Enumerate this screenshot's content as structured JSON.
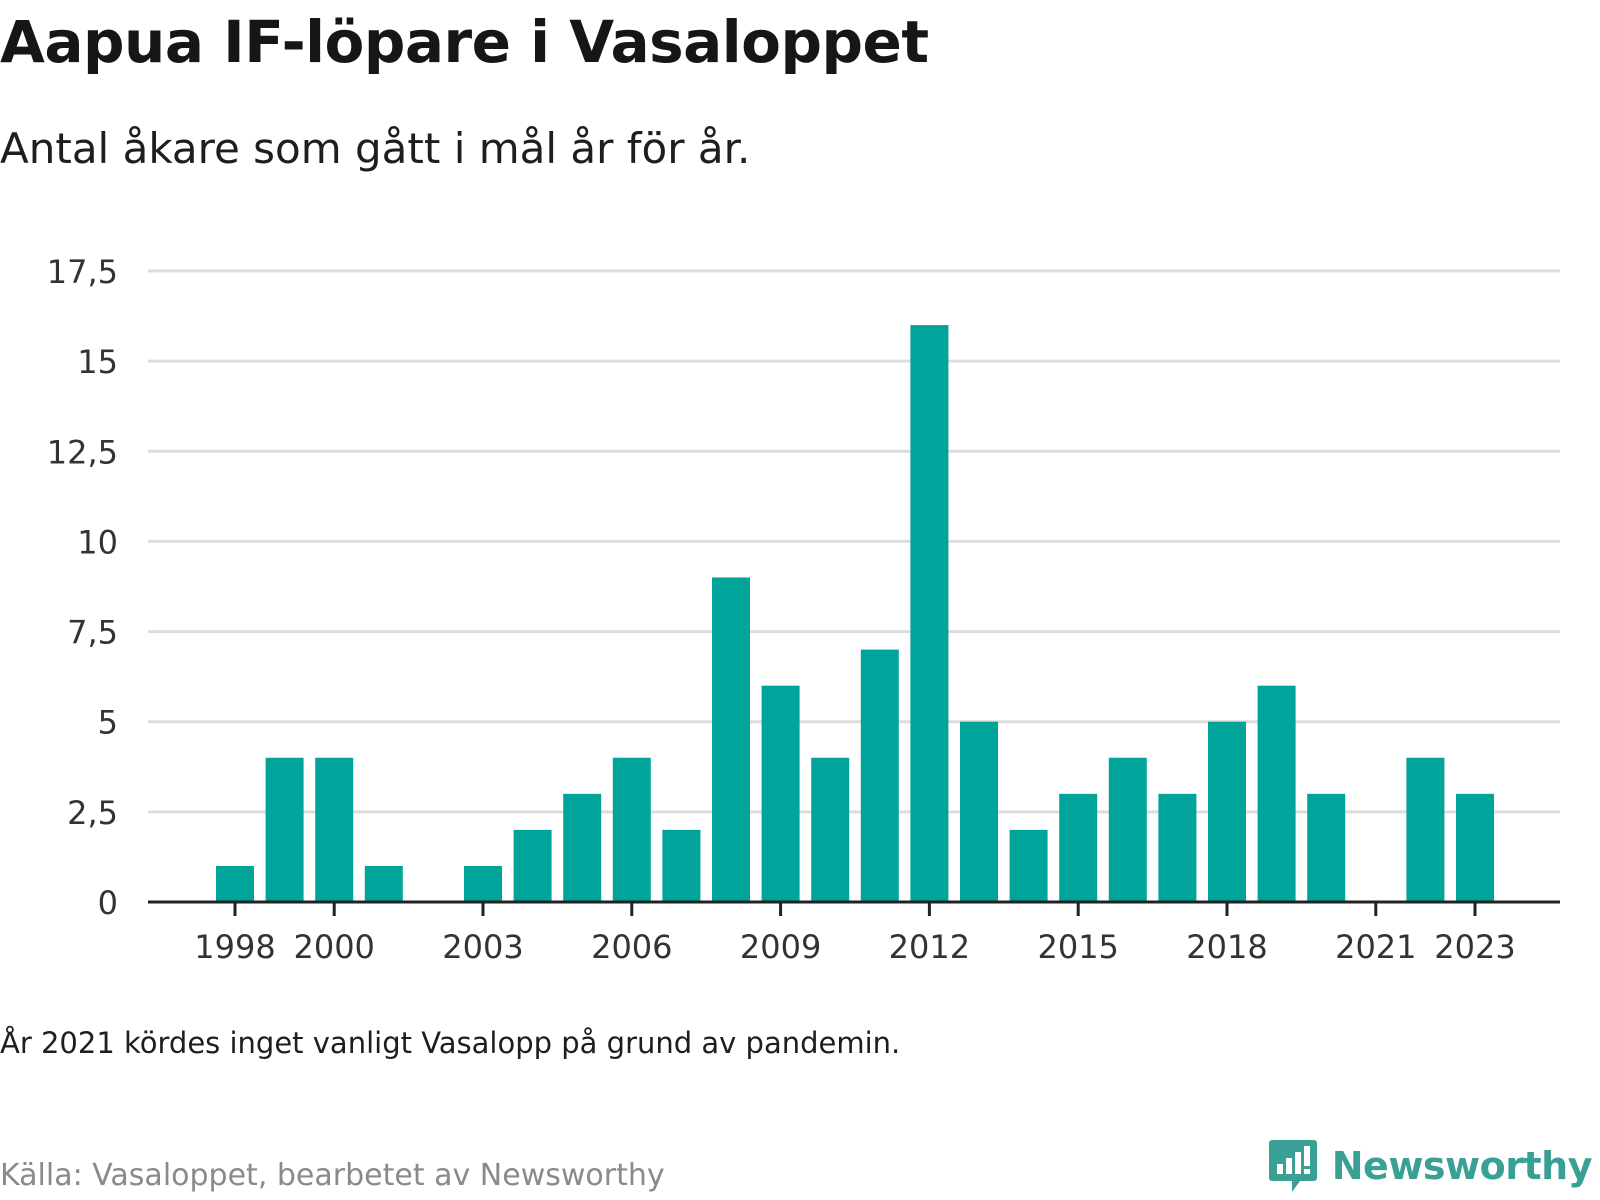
{
  "header": {
    "title": "Aapua IF-löpare i Vasaloppet",
    "subtitle": "Antal åkare som gått i mål år för år."
  },
  "footer": {
    "note": "År 2021 kördes inget vanligt Vasalopp på grund av pandemin.",
    "source": "Källa: Vasaloppet, bearbetet av Newsworthy",
    "brand": "Newsworthy",
    "brand_icon": "bar-chart-speech-bubble-icon"
  },
  "colors": {
    "bar": "#00a49a",
    "grid": "#dddddd",
    "axis": "#222222",
    "brand": "#3a9f94"
  },
  "chart_data": {
    "type": "bar",
    "title": "Aapua IF-löpare i Vasaloppet",
    "subtitle": "Antal åkare som gått i mål år för år.",
    "xlabel": "",
    "ylabel": "",
    "categories": [
      1998,
      1999,
      2000,
      2001,
      2002,
      2003,
      2004,
      2005,
      2006,
      2007,
      2008,
      2009,
      2010,
      2011,
      2012,
      2013,
      2014,
      2015,
      2016,
      2017,
      2018,
      2019,
      2020,
      2021,
      2022,
      2023
    ],
    "values": [
      1,
      4,
      4,
      1,
      0,
      1,
      2,
      3,
      4,
      2,
      9,
      6,
      4,
      7,
      16,
      5,
      2,
      3,
      4,
      3,
      5,
      6,
      3,
      0,
      4,
      3
    ],
    "x_tick_labels": [
      "1998",
      "2000",
      "2003",
      "2006",
      "2009",
      "2012",
      "2015",
      "2018",
      "2021",
      "2023"
    ],
    "y_ticks": [
      0,
      2.5,
      5,
      7.5,
      10,
      12.5,
      15,
      17.5
    ],
    "y_tick_labels": [
      "0",
      "2,5",
      "5",
      "7,5",
      "10",
      "12,5",
      "15",
      "17,5"
    ],
    "ylim": [
      0,
      17.5
    ],
    "grid": true,
    "legend": "none"
  }
}
